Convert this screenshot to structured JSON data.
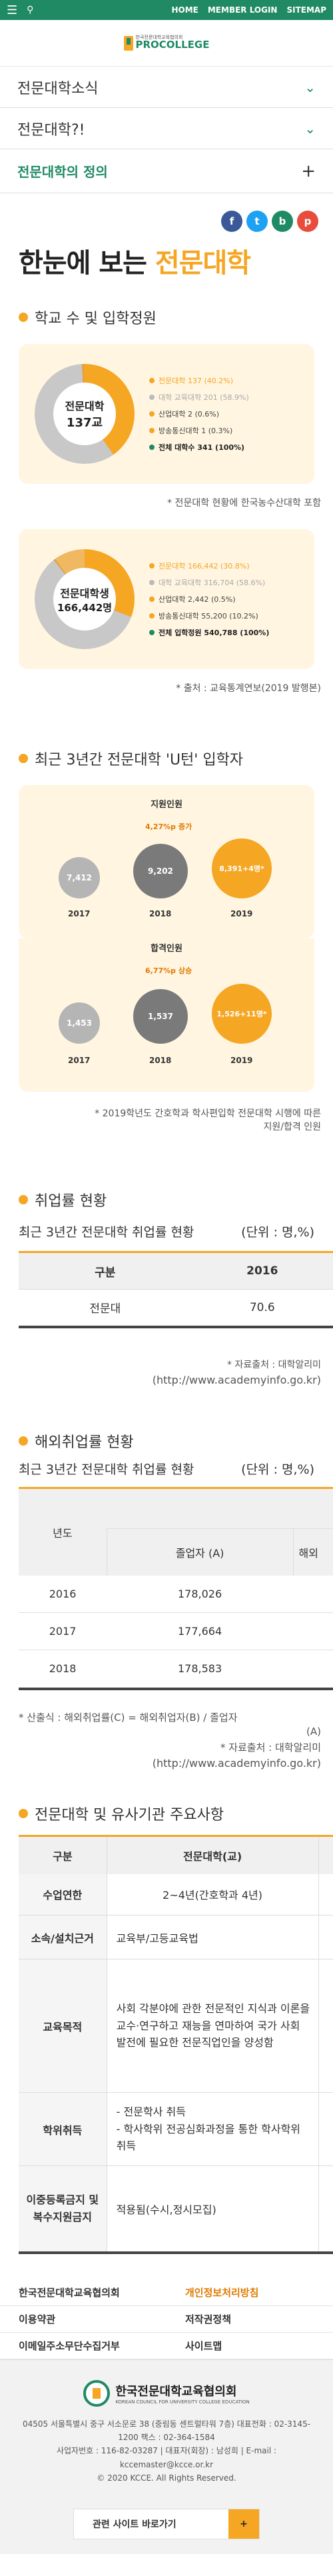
{
  "topbar": {
    "home": "HOME",
    "member_login": "MEMBER LOGIN",
    "sitemap": "SITEMAP"
  },
  "logo": {
    "small": "한국전문대학교육협의회",
    "big": "PROCOLLEGE"
  },
  "menu": [
    {
      "label": "전문대학소식"
    },
    {
      "label": "전문대학?!"
    },
    {
      "label": "전문대학의 정의"
    }
  ],
  "share": [
    {
      "label": "f",
      "color": "#3b5998"
    },
    {
      "label": "t",
      "color": "#1da1f2"
    },
    {
      "label": "b",
      "color": "#1f8a63"
    },
    {
      "label": "p",
      "color": "#e74c3c"
    }
  ],
  "page_title": {
    "pre": "한눈에 보는 ",
    "hl": "전문대학"
  },
  "sec1": {
    "title": "학교 수 및 입학정원",
    "donut1": {
      "center_line1": "전문대학",
      "center_line2": "137교",
      "legend": [
        {
          "label": "전문대학 137 (40.2%)",
          "color": "#f5a623"
        },
        {
          "label": "대학 교육대학 201 (58.9%)",
          "color": "#bbbbbb"
        },
        {
          "label": "산업대학 2 (0.6%)",
          "color": "#f5a623"
        },
        {
          "label": "방송통신대학 1 (0.3%)",
          "color": "#f5a623"
        },
        {
          "label": "전체 대학수 341 (100%)",
          "color": "#1f8a63"
        }
      ]
    },
    "note1": "* 전문대학 현황에 한국농수산대학 포함",
    "donut2": {
      "center_line1": "전문대학생",
      "center_line2": "166,442명",
      "legend": [
        {
          "label": "전문대학 166,442 (30.8%)",
          "color": "#f5a623"
        },
        {
          "label": "대학 교육대학 316,704 (58.6%)",
          "color": "#bbbbbb"
        },
        {
          "label": "산업대학 2,442 (0.5%)",
          "color": "#f5a623"
        },
        {
          "label": "방송통신대학 55,200 (10.2%)",
          "color": "#f5a623"
        },
        {
          "label": "전체 입학정원 540,788 (100%)",
          "color": "#1f8a63"
        }
      ]
    },
    "note2": "* 출처 : 교육통계연보(2019 발행본)"
  },
  "sec2": {
    "title": "최근 3년간 전문대학 'U턴' 입학자",
    "box1": {
      "title": "지원인원",
      "increase": "4,27%p 증가",
      "years": [
        "2017",
        "2018",
        "2019"
      ],
      "values": [
        "7,412",
        "9,202",
        "8,391+4명*"
      ]
    },
    "box2": {
      "title": "합격인원",
      "increase": "6,77%p 상승",
      "years": [
        "2017",
        "2018",
        "2019"
      ],
      "values": [
        "1,453",
        "1,537",
        "1,526+11명*"
      ]
    },
    "note_line1": "* 2019학년도 간호학과 학사편입학 전문대학 시행에 따른",
    "note_line2": "지원/합격 인원"
  },
  "sec3": {
    "title": "취업률 현황",
    "subtitle": "최근 3년간 전문대학 취업률 현황",
    "unit": "(단위 : 명,%)",
    "headers": [
      "구분",
      "2016"
    ],
    "row": [
      "전문대",
      "70.6"
    ],
    "source1": "* 자료출처 : 대학알리미",
    "source2": "(http://www.academyinfo.go.kr)"
  },
  "sec4": {
    "title": "해외취업률 현황",
    "subtitle": "최근 3년간 전문대학 취업률 현황",
    "unit": "(단위 : 명,%)",
    "col_year": "년도",
    "col_grad": "졸업자 (A)",
    "col_abroad": "해외",
    "rows": [
      {
        "year": "2016",
        "grad": "178,026"
      },
      {
        "year": "2017",
        "grad": "177,664"
      },
      {
        "year": "2018",
        "grad": "178,583"
      }
    ],
    "formula1": "* 산출식 : 해외취업률(C) = 해외취업자(B) / 졸업자",
    "formula2": "(A)",
    "source1": "* 자료출처 : 대학알리미",
    "source2": "(http://www.academyinfo.go.kr)"
  },
  "sec5": {
    "title": "전문대학 및 유사기관 주요사항",
    "headers": [
      "구분",
      "전문대학(교)"
    ],
    "rows": [
      {
        "label": "수업연한",
        "value": "2~4년(간호학과 4년)"
      },
      {
        "label": "소속/설치근거",
        "value": "교육부/고등교육법"
      },
      {
        "label": "교육목적",
        "value": "사회 각분야에 관한 전문적인 지식과 이론을 교수·연구하고 재능을 연마하여 국가 사회 발전에 필요한 전문직업인을 양성함"
      },
      {
        "label": "학위취득",
        "value": "- 전문학사 취득\n- 학사학위 전공심화과정을 통한 학사학위 취득"
      },
      {
        "label": "이중등록금지 및 복수지원금지",
        "value": "적용됨(수시,정시모집)"
      }
    ]
  },
  "footer": {
    "links": [
      "한국전문대학교육협의회",
      "개인정보처리방침",
      "이용약관",
      "저작권정책",
      "이메일주소무단수집거부",
      "사이트맵"
    ],
    "org_name": "한국전문대학교육협의회",
    "org_en": "KOREAN COUNCIL FOR UNIVERSITY COLLEGE EDUCATION",
    "address1": "04505 서울특별시 중구 서소문로 38 (중림동 센트럴타워 7층) 대표전화 : 02-3145-1200 팩스 : 02-364-1584",
    "address2": "사업자번호 : 116-82-03287 | 대표자(회장) : 남성희 | E-mail : kccemaster@kcce.or.kr",
    "copyright": "© 2020 KCCE. All Rights Reserved.",
    "related": "관련 사이트 바로가기",
    "related_plus": "+"
  }
}
